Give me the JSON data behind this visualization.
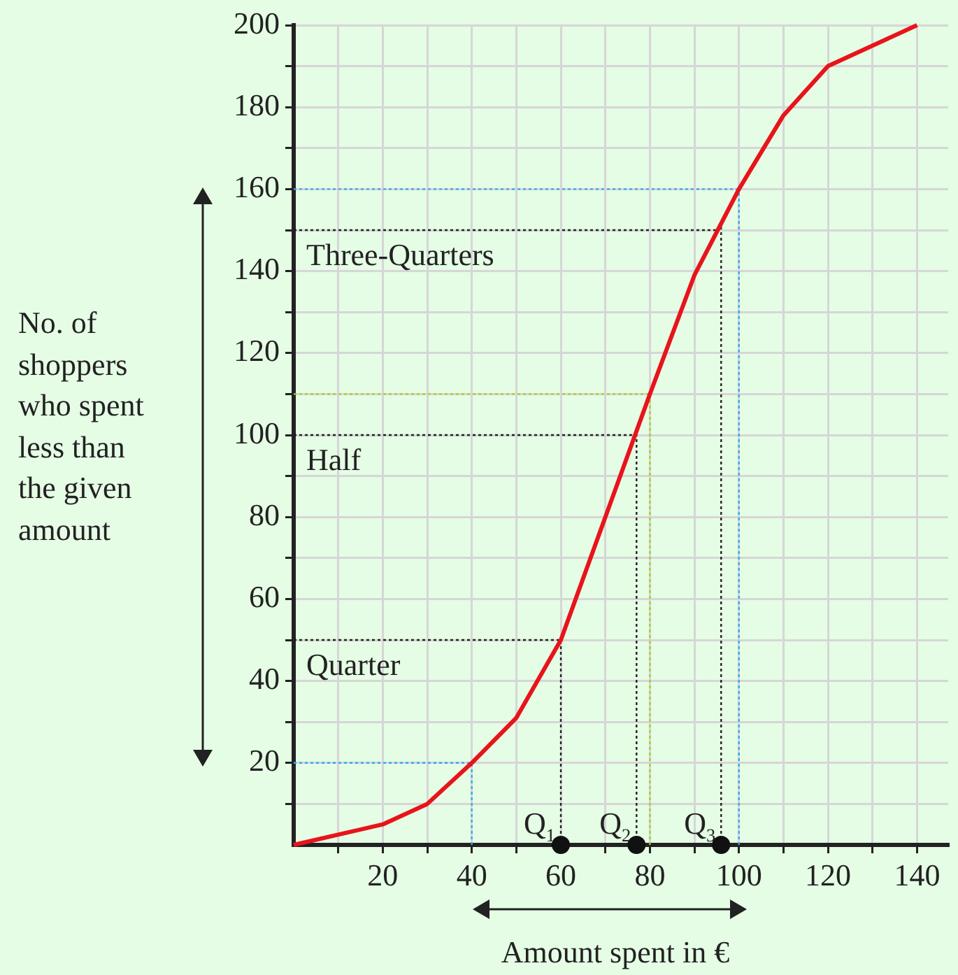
{
  "chart_data": {
    "type": "line",
    "xlabel": "Amount spent in €",
    "ylabel": "No. of shoppers who spent less than the given amount",
    "xlim": [
      0,
      147
    ],
    "ylim": [
      0,
      200
    ],
    "xticks": [
      {
        "value": 10,
        "label": null
      },
      20,
      {
        "value": 30,
        "label": null
      },
      40,
      {
        "value": 50,
        "label": null
      },
      60,
      {
        "value": 70,
        "label": null
      },
      80,
      {
        "value": 90,
        "label": null
      },
      100,
      {
        "value": 110,
        "label": null
      },
      120,
      {
        "value": 130,
        "label": null
      },
      140
    ],
    "yticks": [
      {
        "value": 10,
        "label": null
      },
      20,
      {
        "value": 30,
        "label": null
      },
      40,
      {
        "value": 50,
        "label": null
      },
      60,
      {
        "value": 70,
        "label": null
      },
      80,
      {
        "value": 90,
        "label": null
      },
      100,
      {
        "value": 110,
        "label": null
      },
      120,
      {
        "value": 130,
        "label": null
      },
      140,
      {
        "value": 150,
        "label": null
      },
      160,
      {
        "value": 170,
        "label": null
      },
      180,
      {
        "value": 190,
        "label": null
      },
      200
    ],
    "grid": true,
    "series": [
      {
        "color": "#e8141b",
        "marker": "none",
        "x": [
          0,
          20,
          30,
          40,
          50,
          60,
          70,
          80,
          90,
          100,
          110,
          120,
          130,
          140
        ],
        "values": [
          0,
          5,
          10,
          20,
          31,
          50,
          80,
          110,
          139,
          160,
          178,
          190,
          195,
          200
        ]
      },
      {
        "type": "scatter",
        "color": "#111111",
        "marker": "circle",
        "x": [
          60,
          77,
          96
        ],
        "values": [
          0,
          0,
          0
        ]
      }
    ],
    "ref_lines": [
      {
        "axis": "y",
        "value": 20,
        "color": "#33aaee",
        "line_style": "dotted"
      },
      {
        "axis": "x",
        "value": 40,
        "color": "#33aaee",
        "line_style": "dotted"
      },
      {
        "axis": "y",
        "value": 160,
        "color": "#33aaee",
        "line_style": "dotted"
      },
      {
        "axis": "x",
        "value": 100,
        "color": "#33aaee",
        "line_style": "dotted"
      },
      {
        "axis": "y",
        "value": 110,
        "color": "#aacc22",
        "line_style": "dotted"
      },
      {
        "axis": "x",
        "value": 80,
        "color": "#aacc22",
        "line_style": "dotted"
      },
      {
        "axis": "y",
        "value": 50,
        "color": "#222222",
        "line_style": "dotted"
      },
      {
        "axis": "x",
        "value": 60,
        "color": "#222222",
        "line_style": "dotted"
      },
      {
        "axis": "y",
        "value": 100,
        "color": "#222222",
        "line_style": "dotted"
      },
      {
        "axis": "x",
        "value": 77,
        "color": "#222222",
        "line_style": "dotted"
      },
      {
        "axis": "y",
        "value": 150,
        "color": "#222222",
        "line_style": "dotted"
      },
      {
        "axis": "x",
        "value": 96,
        "color": "#222222",
        "line_style": "dotted"
      }
    ],
    "annotations": [
      {
        "text": "Three-Quarters",
        "x": 0,
        "y": 150
      },
      {
        "text": "Half",
        "x": 0,
        "y": 100
      },
      {
        "text": "Quarter",
        "x": 0,
        "y": 50
      },
      {
        "text": "Q$_{1}$",
        "x": 60,
        "y": 0
      },
      {
        "text": "Q$_{2}$",
        "x": 77,
        "y": 0
      },
      {
        "text": "Q$_{3}$",
        "x": 96,
        "y": 0
      }
    ]
  }
}
